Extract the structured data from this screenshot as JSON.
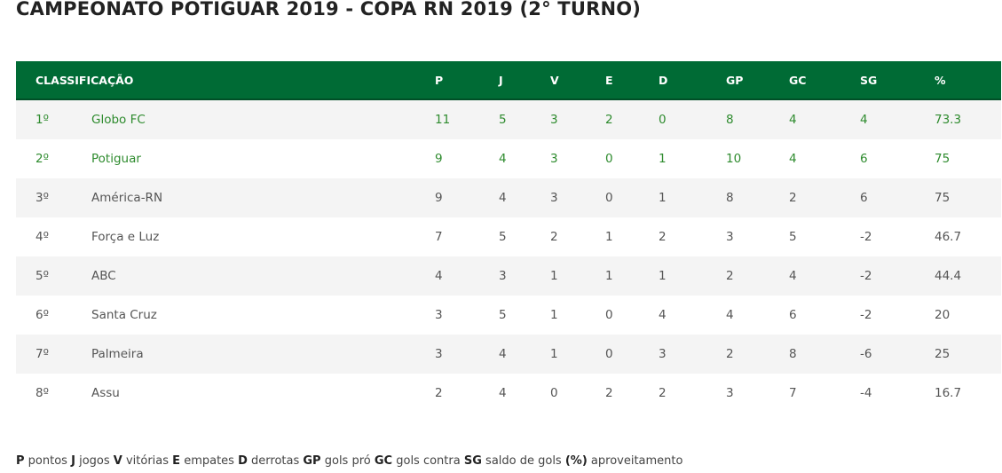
{
  "page_title": "CAMPEONATO POTIGUAR 2019 - COPA RN 2019 (2° TURNO)",
  "table": {
    "header": {
      "label": "CLASSIFICAÇÃO",
      "cols": [
        "P",
        "J",
        "V",
        "E",
        "D",
        "GP",
        "GC",
        "SG",
        "%"
      ]
    },
    "rows": [
      {
        "pos": "1º",
        "team": "Globo FC",
        "p": "11",
        "j": "5",
        "v": "3",
        "e": "2",
        "d": "0",
        "gp": "8",
        "gc": "4",
        "sg": "4",
        "pct": "73.3"
      },
      {
        "pos": "2º",
        "team": "Potiguar",
        "p": "9",
        "j": "4",
        "v": "3",
        "e": "0",
        "d": "1",
        "gp": "10",
        "gc": "4",
        "sg": "6",
        "pct": "75"
      },
      {
        "pos": "3º",
        "team": "América-RN",
        "p": "9",
        "j": "4",
        "v": "3",
        "e": "0",
        "d": "1",
        "gp": "8",
        "gc": "2",
        "sg": "6",
        "pct": "75"
      },
      {
        "pos": "4º",
        "team": "Força e Luz",
        "p": "7",
        "j": "5",
        "v": "2",
        "e": "1",
        "d": "2",
        "gp": "3",
        "gc": "5",
        "sg": "-2",
        "pct": "46.7"
      },
      {
        "pos": "5º",
        "team": "ABC",
        "p": "4",
        "j": "3",
        "v": "1",
        "e": "1",
        "d": "1",
        "gp": "2",
        "gc": "4",
        "sg": "-2",
        "pct": "44.4"
      },
      {
        "pos": "6º",
        "team": "Santa Cruz",
        "p": "3",
        "j": "5",
        "v": "1",
        "e": "0",
        "d": "4",
        "gp": "4",
        "gc": "6",
        "sg": "-2",
        "pct": "20"
      },
      {
        "pos": "7º",
        "team": "Palmeira",
        "p": "3",
        "j": "4",
        "v": "1",
        "e": "0",
        "d": "3",
        "gp": "2",
        "gc": "8",
        "sg": "-6",
        "pct": "25"
      },
      {
        "pos": "8º",
        "team": "Assu",
        "p": "2",
        "j": "4",
        "v": "0",
        "e": "2",
        "d": "2",
        "gp": "3",
        "gc": "7",
        "sg": "-4",
        "pct": "16.7"
      }
    ]
  },
  "legend": {
    "items": [
      {
        "abbr": "P",
        "text": "pontos"
      },
      {
        "abbr": "J",
        "text": "jogos"
      },
      {
        "abbr": "V",
        "text": "vitórias"
      },
      {
        "abbr": "E",
        "text": "empates"
      },
      {
        "abbr": "D",
        "text": "derrotas"
      },
      {
        "abbr": "GP",
        "text": "gols pró"
      },
      {
        "abbr": "GC",
        "text": "gols contra"
      },
      {
        "abbr": "SG",
        "text": "saldo de gols"
      },
      {
        "abbr": "(%)",
        "text": "aproveitamento"
      }
    ]
  },
  "colors": {
    "header_bg": "#006b35",
    "qualified_text": "#2e8b2e",
    "row_alt": "#f4f4f4"
  }
}
